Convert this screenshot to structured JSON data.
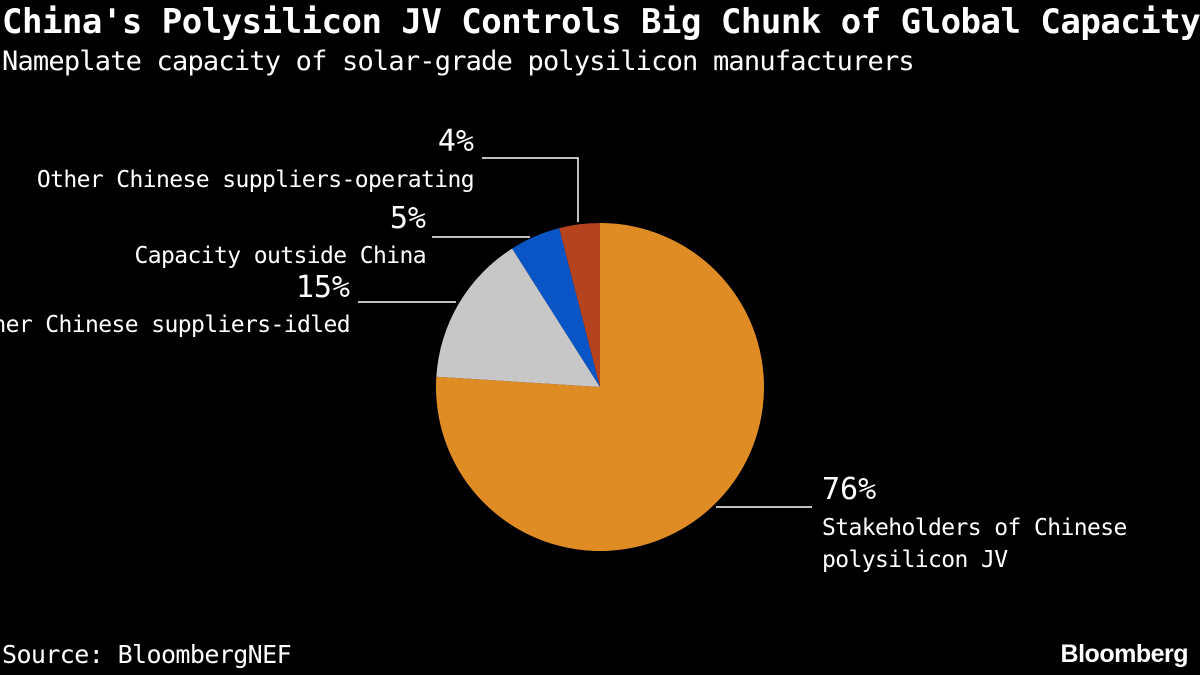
{
  "header": {
    "title": "China's Polysilicon JV Controls Big Chunk of Global Capacity",
    "subtitle": "Nameplate capacity of solar-grade polysilicon manufacturers"
  },
  "footer": {
    "source": "Source: BloombergNEF",
    "brand": "Bloomberg"
  },
  "chart_data": {
    "type": "pie",
    "title": "China's Polysilicon JV Controls Big Chunk of Global Capacity",
    "subtitle": "Nameplate capacity of solar-grade polysilicon manufacturers",
    "slices": [
      {
        "label": "Stakeholders of Chinese polysilicon JV",
        "label_lines": [
          "Stakeholders of Chinese",
          "polysilicon JV"
        ],
        "value": 76,
        "display": "76%",
        "color": "#e08c24"
      },
      {
        "label": "Other Chinese suppliers-idled",
        "label_lines": [
          "Other Chinese suppliers-idled"
        ],
        "value": 15,
        "display": "15%",
        "color": "#c7c7c7"
      },
      {
        "label": "Capacity outside China",
        "label_lines": [
          "Capacity outside China"
        ],
        "value": 5,
        "display": "5%",
        "color": "#0a55c6"
      },
      {
        "label": "Other Chinese suppliers-operating",
        "label_lines": [
          "Other Chinese suppliers-operating"
        ],
        "value": 4,
        "display": "4%",
        "color": "#b5431e"
      }
    ],
    "start": "12 o'clock, clockwise"
  }
}
